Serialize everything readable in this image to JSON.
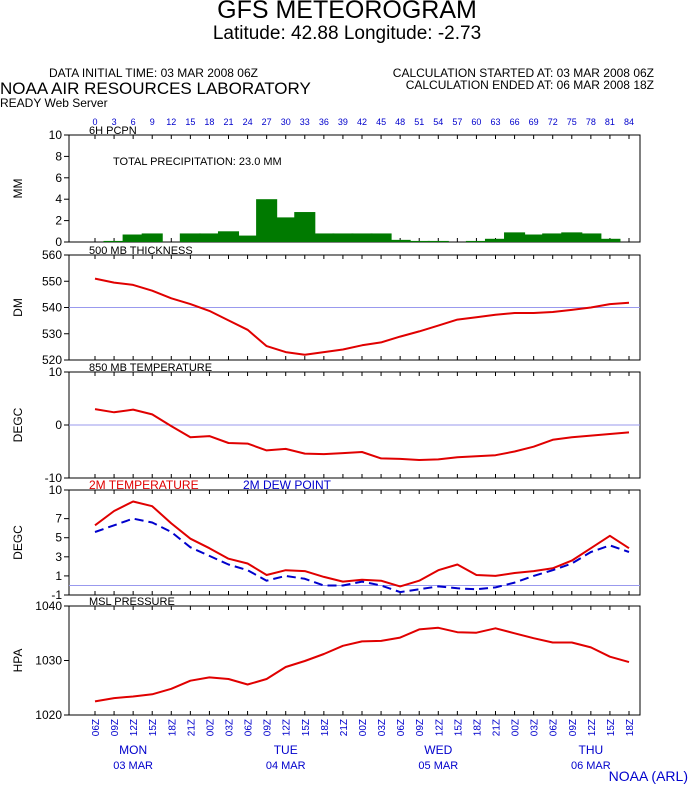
{
  "header": {
    "title": "GFS METEOROGRAM",
    "subtitle": "Latitude: 42.88 Longitude:  -2.73",
    "data_initial_time": "DATA INITIAL TIME: 03 MAR 2008 06Z",
    "calc_started": "CALCULATION STARTED AT: 03 MAR 2008 06Z",
    "calc_ended": "CALCULATION ENDED AT: 06 MAR 2008 18Z",
    "organization": "NOAA AIR RESOURCES LABORATORY",
    "server": "READY Web Server"
  },
  "footer": {
    "credit": "NOAA (ARL)"
  },
  "colors": {
    "precip": "#007a00",
    "temp": "#e00000",
    "dew": "#0000cc",
    "grid": "#9999ee",
    "axis_text": "#0000cc"
  },
  "chart_data": {
    "forecast_hours": [
      "0",
      "3",
      "6",
      "9",
      "12",
      "15",
      "18",
      "21",
      "24",
      "27",
      "30",
      "33",
      "36",
      "39",
      "42",
      "45",
      "48",
      "51",
      "54",
      "57",
      "60",
      "63",
      "66",
      "69",
      "72",
      "75",
      "78",
      "81",
      "84"
    ],
    "time_labels": [
      "06Z",
      "09Z",
      "12Z",
      "15Z",
      "18Z",
      "21Z",
      "00Z",
      "03Z",
      "06Z",
      "09Z",
      "12Z",
      "15Z",
      "18Z",
      "21Z",
      "00Z",
      "03Z",
      "06Z",
      "09Z",
      "12Z",
      "15Z",
      "18Z",
      "21Z",
      "00Z",
      "03Z",
      "06Z",
      "09Z",
      "12Z",
      "15Z",
      "18Z"
    ],
    "day_labels": [
      {
        "day": "MON",
        "date": "03 MAR",
        "at_index": 2
      },
      {
        "day": "TUE",
        "date": "04 MAR",
        "at_index": 10
      },
      {
        "day": "WED",
        "date": "05 MAR",
        "at_index": 18
      },
      {
        "day": "THU",
        "date": "06 MAR",
        "at_index": 26
      }
    ],
    "panels": [
      {
        "key": "precip",
        "type": "bar",
        "title": "6H PCPN",
        "ylabel": "MM",
        "ylim": [
          0,
          10
        ],
        "yticks": [
          0,
          2,
          4,
          6,
          8,
          10
        ],
        "annotation": "TOTAL PRECIPITATION:  23.0 MM",
        "series": [
          {
            "color": "#007a00",
            "values": [
              0,
              0.1,
              0.7,
              0.8,
              0,
              0.8,
              0.8,
              1.0,
              0.6,
              4.0,
              2.3,
              2.8,
              0.8,
              0.8,
              0.8,
              0.8,
              0.2,
              0.1,
              0.1,
              0,
              0.1,
              0.3,
              0.9,
              0.7,
              0.8,
              0.9,
              0.8,
              0.3,
              0
            ]
          }
        ]
      },
      {
        "key": "thickness",
        "type": "line",
        "title": "500 MB  THICKNESS",
        "ylabel": "DM",
        "ylim": [
          520,
          560
        ],
        "yticks": [
          520,
          530,
          540,
          550,
          560
        ],
        "refline": 540,
        "series": [
          {
            "color": "#e00000",
            "dash": false,
            "values": [
              551,
              549.5,
              548.6,
              546.4,
              543.5,
              541.3,
              538.7,
              535.1,
              531.5,
              525.3,
              523,
              522,
              523,
              524,
              525.6,
              526.7,
              528.9,
              530.9,
              533.1,
              535.4,
              536.3,
              537.2,
              537.9,
              537.9,
              538.3,
              539.1,
              540,
              541.3,
              541.8
            ]
          }
        ]
      },
      {
        "key": "t850",
        "type": "line",
        "title": "850 MB  TEMPERATURE",
        "ylabel": "DEGC",
        "ylim": [
          -10,
          10
        ],
        "yticks": [
          -10,
          0,
          10
        ],
        "refline": 0,
        "series": [
          {
            "color": "#e00000",
            "dash": false,
            "values": [
              3,
              2.4,
              2.9,
              2,
              -0.2,
              -2.3,
              -2.1,
              -3.4,
              -3.5,
              -4.8,
              -4.5,
              -5.4,
              -5.5,
              -5.3,
              -5.1,
              -6.3,
              -6.4,
              -6.6,
              -6.5,
              -6.1,
              -5.9,
              -5.7,
              -5,
              -4.1,
              -2.8,
              -2.3,
              -2,
              -1.7,
              -1.4
            ]
          }
        ]
      },
      {
        "key": "t2m",
        "type": "line",
        "title": "",
        "ylabel": "DEGC",
        "ylim": [
          -1,
          10
        ],
        "yticks": [
          -1,
          1,
          3,
          5,
          7,
          10
        ],
        "refline": 0,
        "legend": [
          {
            "label": "2M TEMPERATURE",
            "color": "#e00000"
          },
          {
            "label": "2M  DEW POINT",
            "color": "#0000cc"
          }
        ],
        "series": [
          {
            "name": "2M TEMPERATURE",
            "color": "#e00000",
            "dash": false,
            "values": [
              6.3,
              7.8,
              8.8,
              8.3,
              6.5,
              4.9,
              3.9,
              2.8,
              2.3,
              1.1,
              1.6,
              1.5,
              0.9,
              0.4,
              0.6,
              0.5,
              -0.1,
              0.5,
              1.6,
              2.2,
              1.1,
              1,
              1.3,
              1.5,
              1.8,
              2.6,
              3.9,
              5.2,
              3.9
            ]
          },
          {
            "name": "2M  DEW POINT",
            "color": "#0000cc",
            "dash": true,
            "values": [
              5.6,
              6.3,
              7,
              6.6,
              5.6,
              4,
              3.1,
              2.2,
              1.6,
              0.5,
              1,
              0.7,
              0,
              0,
              0.4,
              0,
              -0.7,
              -0.4,
              -0.1,
              -0.3,
              -0.4,
              -0.2,
              0.3,
              1,
              1.6,
              2.3,
              3.5,
              4.2,
              3.5
            ]
          }
        ]
      },
      {
        "key": "mslp",
        "type": "line",
        "title": "MSL PRESSURE",
        "ylabel": "HPA",
        "ylim": [
          1020,
          1040
        ],
        "yticks": [
          1020,
          1030,
          1040
        ],
        "series": [
          {
            "color": "#e00000",
            "dash": false,
            "values": [
              1022.5,
              1023.1,
              1023.4,
              1023.8,
              1024.8,
              1026.3,
              1026.9,
              1026.6,
              1025.6,
              1026.6,
              1028.8,
              1029.9,
              1031.2,
              1032.7,
              1033.5,
              1033.6,
              1034.2,
              1035.7,
              1036,
              1035.2,
              1035.1,
              1035.9,
              1035,
              1034.1,
              1033.3,
              1033.3,
              1032.4,
              1030.7,
              1029.7
            ]
          }
        ]
      }
    ]
  }
}
